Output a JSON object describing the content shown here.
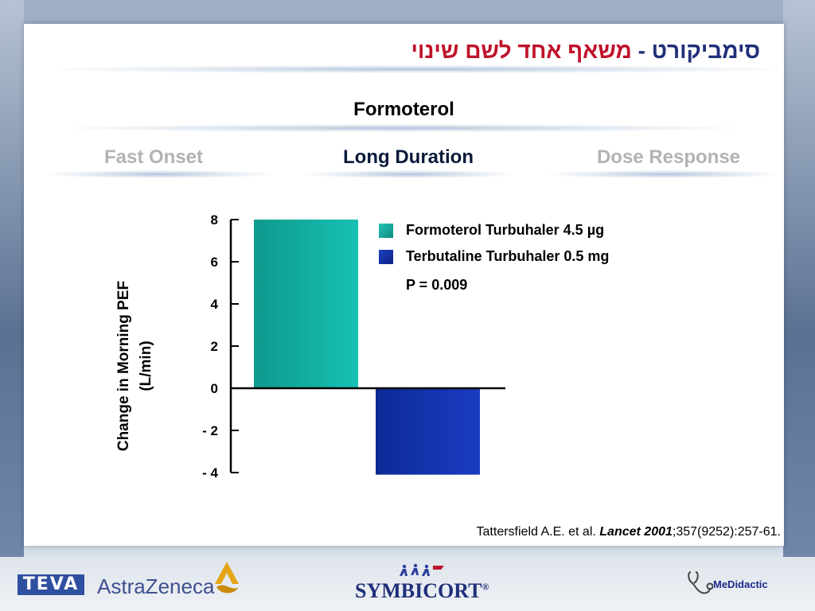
{
  "slide": {
    "title_part1": "סימביקורט - ",
    "title_part2": "משאף אחד לשם שינוי",
    "subtitle": "Formoterol",
    "tabs": [
      {
        "label": "Fast Onset",
        "active": false
      },
      {
        "label": "Long Duration",
        "active": true
      },
      {
        "label": "Dose Response",
        "active": false
      }
    ],
    "citation_prefix": "Tattersfield A.E. et al. ",
    "citation_journal": "Lancet 2001",
    "citation_suffix": ";357(9252):257-61."
  },
  "chart_data": {
    "type": "bar",
    "categories": [
      "Formoterol Turbuhaler  4.5 µg",
      "Terbutaline Turbuhaler  0.5 mg"
    ],
    "values": [
      8.0,
      -4.1
    ],
    "colors": [
      "#13a79a",
      "#1530a0"
    ],
    "ylabel": "Change in Morning PEF (L/min)",
    "ylabel_lines": [
      "Change in Morning PEF",
      "(L/min)"
    ],
    "ylim": [
      -4,
      8
    ],
    "yticks": [
      8,
      6,
      4,
      2,
      0,
      -2,
      -4
    ],
    "ytick_labels": [
      "8",
      "6",
      "4",
      "2",
      "0",
      "- 2",
      "- 4"
    ],
    "legend": [
      {
        "label": "Formoterol Turbuhaler  4.5 µg",
        "color": "#13a79a"
      },
      {
        "label": "Terbutaline Turbuhaler  0.5 mg",
        "color": "#1530a0"
      }
    ],
    "annotation": "P = 0.009"
  },
  "footer": {
    "logos": [
      "TEVA",
      "AstraZeneca",
      "SYMBICORT",
      "MeDidactic"
    ],
    "symbicort_mark": "®"
  },
  "colors": {
    "title_blue": "#1f2f7a",
    "title_red": "#c0122a",
    "tab_inactive": "#b3b3b3",
    "tab_active": "#0a1a3a"
  }
}
